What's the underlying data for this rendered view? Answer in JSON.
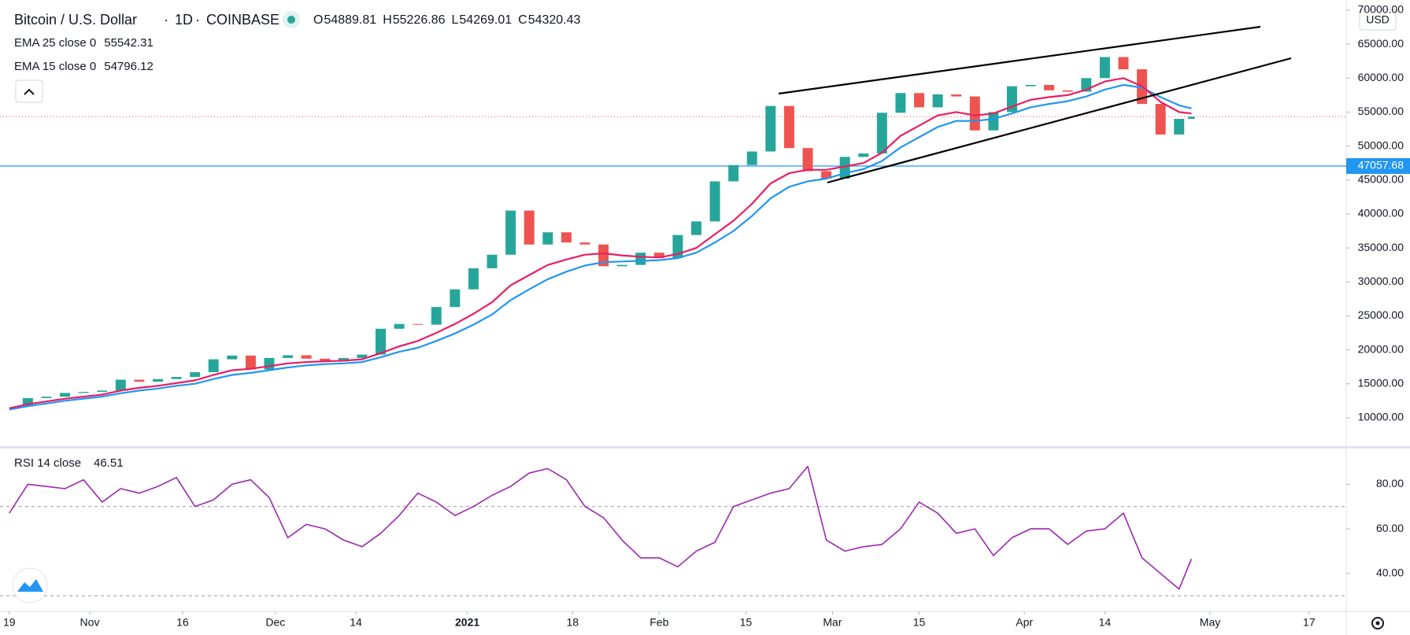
{
  "header": {
    "title": "Bitcoin / U.S. Dollar",
    "interval": "1D",
    "exchange": "COINBASE",
    "ohlc": [
      {
        "prefix": "O",
        "value": "54889.81"
      },
      {
        "prefix": "H",
        "value": "55226.86"
      },
      {
        "prefix": "L",
        "value": "54269.01"
      },
      {
        "prefix": "C",
        "value": "54320.43"
      }
    ],
    "currency": "USD"
  },
  "chart_data": [
    {
      "type": "candlestick",
      "x": [
        0,
        3,
        6,
        9,
        12,
        15,
        18,
        21,
        24,
        27,
        30,
        33,
        36,
        39,
        42,
        45,
        48,
        51,
        54,
        57,
        60,
        63,
        66,
        69,
        72,
        75,
        78,
        81,
        84,
        87,
        90,
        93,
        96,
        99,
        102,
        105,
        108,
        111,
        114,
        117,
        120,
        123,
        126,
        129,
        132,
        135,
        138,
        141,
        144,
        147,
        150,
        153,
        156,
        159,
        162,
        165,
        168,
        171,
        174,
        177,
        180,
        183,
        186,
        189,
        191
      ],
      "close": [
        11750,
        12900,
        13100,
        13650,
        13800,
        14000,
        15600,
        15300,
        15700,
        16000,
        16700,
        18600,
        19150,
        17100,
        18800,
        19200,
        18700,
        18300,
        18800,
        19300,
        23100,
        23800,
        23700,
        26300,
        28900,
        32000,
        34000,
        40500,
        35500,
        37300,
        35800,
        35500,
        32300,
        32500,
        34300,
        33500,
        36900,
        38900,
        44800,
        47200,
        49200,
        55900,
        49700,
        46300,
        45200,
        48400,
        48900,
        54900,
        57800,
        55700,
        57600,
        57300,
        52300,
        55000,
        58800,
        59000,
        58200,
        58000,
        60000,
        63100,
        61300,
        56200,
        51700,
        54000,
        54320.43
      ],
      "up_color": "#26a69a",
      "down_color": "#ef5350",
      "series": [
        {
          "name": "EMA 25 close 0",
          "color": "#2196f3",
          "values": [
            11200,
            11700,
            12100,
            12500,
            12800,
            13100,
            13600,
            14000,
            14300,
            14700,
            15000,
            15700,
            16300,
            16600,
            17000,
            17400,
            17700,
            17900,
            18000,
            18200,
            18900,
            19700,
            20300,
            21300,
            22400,
            23700,
            25200,
            27300,
            28900,
            30400,
            31500,
            32400,
            32900,
            33000,
            33100,
            33200,
            33500,
            34300,
            35800,
            37500,
            39700,
            42300,
            44000,
            44800,
            45200,
            46000,
            46600,
            47800,
            49800,
            51300,
            52800,
            53700,
            53700,
            54000,
            54800,
            55700,
            56200,
            56600,
            57300,
            58300,
            59000,
            58600,
            57200,
            56000,
            55542.31
          ]
        },
        {
          "name": "EMA 15 close 0",
          "color": "#e91e63",
          "values": [
            11400,
            12000,
            12400,
            12800,
            13100,
            13400,
            14000,
            14400,
            14700,
            15100,
            15500,
            16300,
            17000,
            17200,
            17600,
            18000,
            18200,
            18300,
            18400,
            18600,
            19500,
            20500,
            21300,
            22500,
            23800,
            25300,
            27000,
            29500,
            31000,
            32500,
            33300,
            34000,
            34200,
            33900,
            33700,
            33600,
            34100,
            35000,
            37000,
            39000,
            41500,
            44500,
            46000,
            46500,
            46500,
            47000,
            47500,
            49000,
            51500,
            53000,
            54500,
            55000,
            54500,
            54800,
            55800,
            56800,
            57200,
            57500,
            58300,
            59500,
            60000,
            58800,
            56500,
            55000,
            54796.12
          ]
        }
      ],
      "price_line": {
        "value": 47057.68,
        "label": "47057.68",
        "color": "#2196f3"
      },
      "xlim": [
        -1.5,
        216
      ],
      "xticks": [
        {
          "value": 0,
          "label": "19"
        },
        {
          "value": 13,
          "label": "Nov"
        },
        {
          "value": 28,
          "label": "16"
        },
        {
          "value": 43,
          "label": "Dec"
        },
        {
          "value": 56,
          "label": "14"
        },
        {
          "value": 74,
          "label": "2021"
        },
        {
          "value": 91,
          "label": "18"
        },
        {
          "value": 105,
          "label": "Feb"
        },
        {
          "value": 119,
          "label": "15"
        },
        {
          "value": 133,
          "label": "Mar"
        },
        {
          "value": 147,
          "label": "15"
        },
        {
          "value": 164,
          "label": "Apr"
        },
        {
          "value": 177,
          "label": "14"
        },
        {
          "value": 194,
          "label": "May"
        },
        {
          "value": 210,
          "label": "17"
        }
      ],
      "ylim": [
        5700,
        71500
      ],
      "yticks": [
        {
          "value": 10000,
          "label": "10000.00"
        },
        {
          "value": 15000,
          "label": "15000.00"
        },
        {
          "value": 20000,
          "label": "20000.00"
        },
        {
          "value": 25000,
          "label": "25000.00"
        },
        {
          "value": 30000,
          "label": "30000.00"
        },
        {
          "value": 35000,
          "label": "35000.00"
        },
        {
          "value": 40000,
          "label": "40000.00"
        },
        {
          "value": 45000,
          "label": "45000.00"
        },
        {
          "value": 50000,
          "label": "50000.00"
        },
        {
          "value": 55000,
          "label": "55000.00"
        },
        {
          "value": 60000,
          "label": "60000.00"
        },
        {
          "value": 65000,
          "label": "65000.00"
        },
        {
          "value": 70000,
          "label": "70000.00"
        }
      ]
    },
    {
      "type": "line",
      "series": [
        {
          "name": "RSI 14 close",
          "color": "#9c27b0",
          "values": [
            67,
            80,
            79,
            78,
            82,
            72,
            78,
            76,
            79,
            83,
            70,
            73,
            80,
            82,
            74,
            56,
            62,
            60,
            55,
            52,
            58,
            66,
            76,
            72,
            66,
            70,
            75,
            79,
            85,
            87,
            82,
            70,
            65,
            55,
            47,
            47,
            43,
            50,
            54,
            70,
            73,
            76,
            78,
            88,
            55,
            50,
            52,
            53,
            60,
            72,
            67,
            58,
            60,
            48,
            56,
            60,
            60,
            53,
            59,
            60,
            67,
            47,
            40,
            33,
            46.51
          ]
        }
      ],
      "levels": [
        70,
        30
      ],
      "ylim": [
        23,
        96
      ],
      "yticks": [
        {
          "value": 40,
          "label": "40.00"
        },
        {
          "value": 60,
          "label": "60.00"
        },
        {
          "value": 80,
          "label": "80.00"
        }
      ]
    }
  ]
}
